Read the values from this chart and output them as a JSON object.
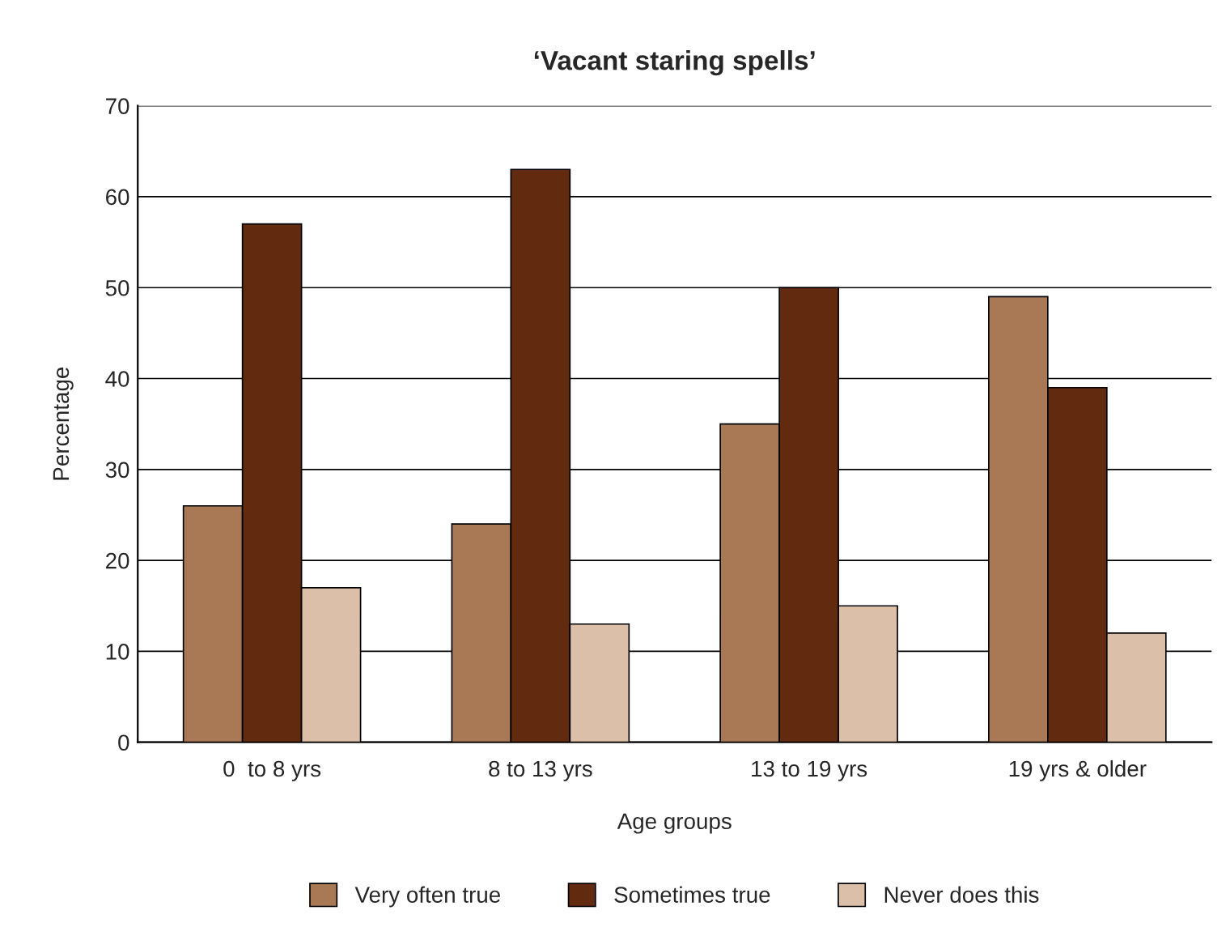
{
  "chart_data": {
    "type": "bar",
    "title": "‘Vacant staring spells’",
    "xlabel": "Age groups",
    "ylabel": "Percentage",
    "categories": [
      "0  to 8 yrs",
      "8 to 13 yrs",
      "13 to 19 yrs",
      "19 yrs & older"
    ],
    "series": [
      {
        "name": "Very often true",
        "color": "#a97956",
        "values": [
          26,
          24,
          35,
          49
        ]
      },
      {
        "name": "Sometimes true",
        "color": "#622a0e",
        "values": [
          57,
          63,
          50,
          39
        ]
      },
      {
        "name": "Never does this",
        "color": "#dbbfa9",
        "values": [
          17,
          13,
          15,
          12
        ]
      }
    ],
    "ylim": [
      0,
      70
    ],
    "yticks": [
      0,
      10,
      20,
      30,
      40,
      50,
      60,
      70
    ],
    "grid": "y",
    "legend": "bottom"
  }
}
